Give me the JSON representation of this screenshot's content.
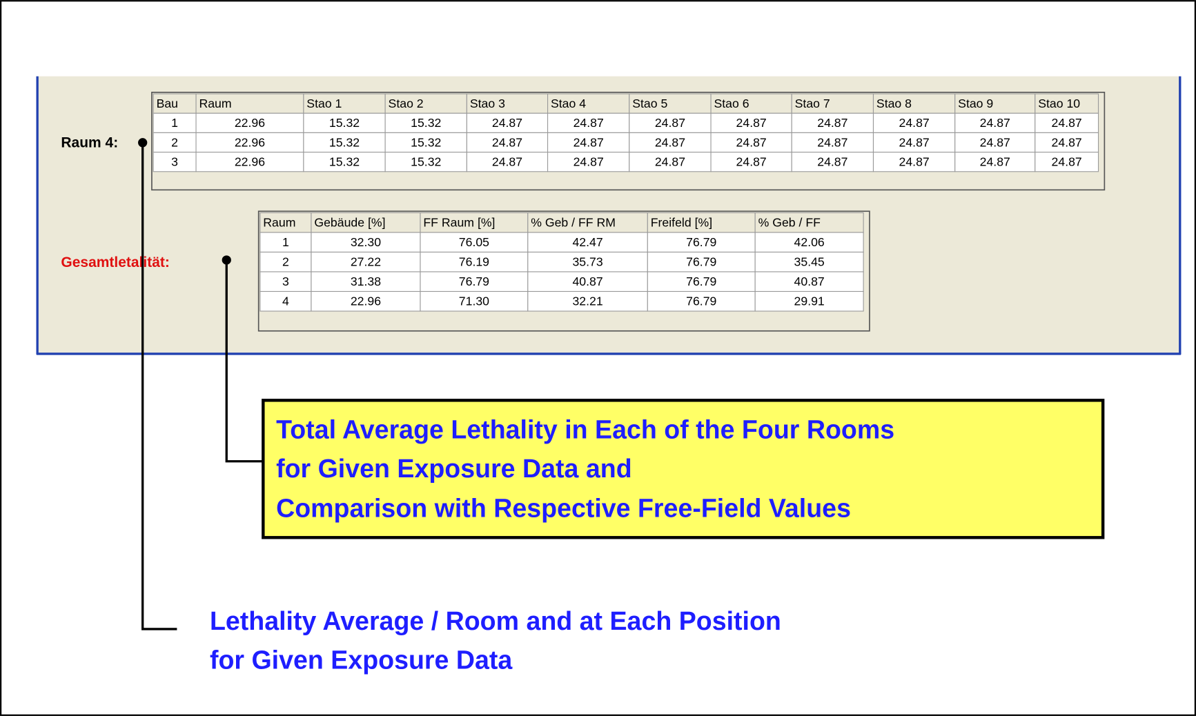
{
  "room_label": "Raum 4:",
  "total_label": "Gesamtletalität:",
  "position_table": {
    "headers": [
      "Bau",
      "Raum",
      "Stao 1",
      "Stao 2",
      "Stao 3",
      "Stao 4",
      "Stao 5",
      "Stao 6",
      "Stao 7",
      "Stao 8",
      "Stao 9",
      "Stao 10"
    ],
    "rows": [
      [
        "1",
        "22.96",
        "15.32",
        "15.32",
        "24.87",
        "24.87",
        "24.87",
        "24.87",
        "24.87",
        "24.87",
        "24.87",
        "24.87"
      ],
      [
        "2",
        "22.96",
        "15.32",
        "15.32",
        "24.87",
        "24.87",
        "24.87",
        "24.87",
        "24.87",
        "24.87",
        "24.87",
        "24.87"
      ],
      [
        "3",
        "22.96",
        "15.32",
        "15.32",
        "24.87",
        "24.87",
        "24.87",
        "24.87",
        "24.87",
        "24.87",
        "24.87",
        "24.87"
      ]
    ]
  },
  "total_table": {
    "headers": [
      "Raum",
      "Gebäude [%]",
      "FF Raum [%]",
      "% Geb / FF RM",
      "Freifeld [%]",
      "% Geb / FF"
    ],
    "rows": [
      [
        "1",
        "32.30",
        "76.05",
        "42.47",
        "76.79",
        "42.06"
      ],
      [
        "2",
        "27.22",
        "76.19",
        "35.73",
        "76.79",
        "35.45"
      ],
      [
        "3",
        "31.38",
        "76.79",
        "40.87",
        "76.79",
        "40.87"
      ],
      [
        "4",
        "22.96",
        "71.30",
        "32.21",
        "76.79",
        "29.91"
      ]
    ]
  },
  "callout_total": [
    "Total Average Lethality in Each of the Four Rooms",
    "for Given Exposure Data and",
    "Comparison with Respective Free-Field Values"
  ],
  "callout_position": [
    "Lethality Average / Room and at Each Position",
    "for Given Exposure Data"
  ]
}
